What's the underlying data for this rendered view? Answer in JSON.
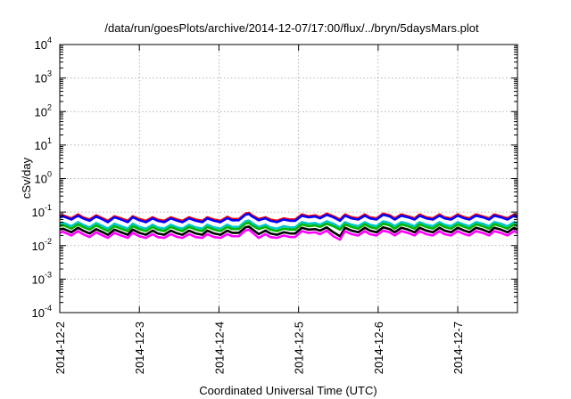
{
  "chart_data": {
    "type": "line",
    "title": "/data/run/goesPlots/archive/2014-12-07/17:00/flux/../bryn/5daysMars.plot",
    "xlabel": "Coordinated Universal Time (UTC)",
    "ylabel": "cSv/day",
    "yscale": "log",
    "ylim": [
      0.0001,
      10000
    ],
    "xlim": [
      "2014-12-02T00:00",
      "2014-12-07T18:00"
    ],
    "grid": true,
    "y_ticks": [
      {
        "base": "10",
        "exp": "-4",
        "value": 0.0001
      },
      {
        "base": "10",
        "exp": "-3",
        "value": 0.001
      },
      {
        "base": "10",
        "exp": "-2",
        "value": 0.01
      },
      {
        "base": "10",
        "exp": "-1",
        "value": 0.1
      },
      {
        "base": "10",
        "exp": "0",
        "value": 1
      },
      {
        "base": "10",
        "exp": "1",
        "value": 10
      },
      {
        "base": "10",
        "exp": "2",
        "value": 100
      },
      {
        "base": "10",
        "exp": "3",
        "value": 1000
      },
      {
        "base": "10",
        "exp": "4",
        "value": 10000
      }
    ],
    "x_ticks": [
      "2014-12-2",
      "2014-12-3",
      "2014-12-4",
      "2014-12-5",
      "2014-12-6",
      "2014-12-7"
    ],
    "x": [
      "2014-12-02T00:00",
      "2014-12-02T01:00",
      "2014-12-02T03:30",
      "2014-12-02T05:30",
      "2014-12-02T07:00",
      "2014-12-02T09:00",
      "2014-12-02T11:00",
      "2014-12-02T13:00",
      "2014-12-02T14:30",
      "2014-12-02T16:30",
      "2014-12-02T18:30",
      "2014-12-02T20:30",
      "2014-12-02T22:00",
      "2014-12-03T00:00",
      "2014-12-03T02:00",
      "2014-12-03T04:00",
      "2014-12-03T05:30",
      "2014-12-03T07:30",
      "2014-12-03T09:30",
      "2014-12-03T11:30",
      "2014-12-03T13:00",
      "2014-12-03T15:00",
      "2014-12-03T17:00",
      "2014-12-03T19:00",
      "2014-12-03T20:30",
      "2014-12-03T22:30",
      "2014-12-04T00:30",
      "2014-12-04T02:30",
      "2014-12-04T04:00",
      "2014-12-04T06:00",
      "2014-12-04T08:00",
      "2014-12-04T09:00",
      "2014-12-04T10:00",
      "2014-12-04T12:00",
      "2014-12-04T14:00",
      "2014-12-04T15:30",
      "2014-12-04T17:30",
      "2014-12-04T19:30",
      "2014-12-04T21:30",
      "2014-12-04T23:00",
      "2014-12-05T01:00",
      "2014-12-05T03:00",
      "2014-12-05T05:00",
      "2014-12-05T06:30",
      "2014-12-05T08:30",
      "2014-12-05T10:30",
      "2014-12-05T12:30",
      "2014-12-05T14:00",
      "2014-12-05T16:00",
      "2014-12-05T18:00",
      "2014-12-05T20:00",
      "2014-12-05T21:30",
      "2014-12-05T23:30",
      "2014-12-06T01:30",
      "2014-12-06T03:30",
      "2014-12-06T05:00",
      "2014-12-06T07:00",
      "2014-12-06T09:00",
      "2014-12-06T11:00",
      "2014-12-06T12:30",
      "2014-12-06T14:30",
      "2014-12-06T16:30",
      "2014-12-06T18:30",
      "2014-12-06T20:00",
      "2014-12-06T22:00",
      "2014-12-07T00:00",
      "2014-12-07T02:00",
      "2014-12-07T03:30",
      "2014-12-07T05:30",
      "2014-12-07T07:30",
      "2014-12-07T09:30",
      "2014-12-07T11:00",
      "2014-12-07T13:00",
      "2014-12-07T15:00",
      "2014-12-07T17:00",
      "2014-12-07T18:00"
    ],
    "series": [
      {
        "color": "#ff0000",
        "values": [
          0.075,
          0.08,
          0.065,
          0.085,
          0.07,
          0.06,
          0.08,
          0.065,
          0.055,
          0.075,
          0.065,
          0.055,
          0.075,
          0.062,
          0.055,
          0.07,
          0.06,
          0.055,
          0.07,
          0.06,
          0.055,
          0.07,
          0.06,
          0.055,
          0.07,
          0.06,
          0.055,
          0.072,
          0.062,
          0.062,
          0.09,
          0.095,
          0.08,
          0.062,
          0.07,
          0.06,
          0.055,
          0.065,
          0.06,
          0.06,
          0.085,
          0.075,
          0.08,
          0.07,
          0.09,
          0.075,
          0.06,
          0.085,
          0.07,
          0.065,
          0.085,
          0.07,
          0.065,
          0.09,
          0.08,
          0.065,
          0.085,
          0.075,
          0.065,
          0.085,
          0.07,
          0.065,
          0.085,
          0.07,
          0.065,
          0.085,
          0.07,
          0.065,
          0.085,
          0.075,
          0.065,
          0.085,
          0.075,
          0.065,
          0.085,
          0.075
        ]
      },
      {
        "color": "#0000ff",
        "values": [
          0.07,
          0.075,
          0.06,
          0.078,
          0.065,
          0.055,
          0.074,
          0.06,
          0.05,
          0.07,
          0.06,
          0.05,
          0.07,
          0.057,
          0.05,
          0.065,
          0.055,
          0.05,
          0.065,
          0.055,
          0.05,
          0.065,
          0.055,
          0.05,
          0.065,
          0.055,
          0.05,
          0.066,
          0.057,
          0.057,
          0.083,
          0.088,
          0.074,
          0.057,
          0.065,
          0.055,
          0.05,
          0.06,
          0.055,
          0.055,
          0.078,
          0.07,
          0.074,
          0.065,
          0.083,
          0.07,
          0.055,
          0.078,
          0.065,
          0.06,
          0.078,
          0.065,
          0.06,
          0.083,
          0.074,
          0.06,
          0.078,
          0.07,
          0.06,
          0.078,
          0.065,
          0.06,
          0.078,
          0.065,
          0.06,
          0.078,
          0.065,
          0.06,
          0.078,
          0.07,
          0.06,
          0.078,
          0.07,
          0.06,
          0.078,
          0.07
        ]
      },
      {
        "color": "#00c8c8",
        "values": [
          0.045,
          0.048,
          0.038,
          0.05,
          0.042,
          0.035,
          0.047,
          0.038,
          0.032,
          0.045,
          0.038,
          0.032,
          0.045,
          0.036,
          0.032,
          0.042,
          0.035,
          0.032,
          0.042,
          0.035,
          0.032,
          0.042,
          0.035,
          0.032,
          0.042,
          0.035,
          0.032,
          0.042,
          0.036,
          0.036,
          0.053,
          0.056,
          0.047,
          0.036,
          0.042,
          0.035,
          0.032,
          0.038,
          0.035,
          0.035,
          0.05,
          0.045,
          0.047,
          0.042,
          0.053,
          0.045,
          0.035,
          0.05,
          0.042,
          0.038,
          0.05,
          0.042,
          0.038,
          0.053,
          0.047,
          0.038,
          0.05,
          0.045,
          0.038,
          0.05,
          0.042,
          0.038,
          0.05,
          0.042,
          0.038,
          0.05,
          0.042,
          0.038,
          0.05,
          0.045,
          0.038,
          0.05,
          0.045,
          0.038,
          0.05,
          0.045
        ]
      },
      {
        "color": "#00b400",
        "values": [
          0.038,
          0.041,
          0.032,
          0.043,
          0.036,
          0.03,
          0.04,
          0.032,
          0.027,
          0.038,
          0.032,
          0.027,
          0.038,
          0.031,
          0.027,
          0.036,
          0.03,
          0.027,
          0.036,
          0.03,
          0.027,
          0.036,
          0.03,
          0.027,
          0.036,
          0.03,
          0.027,
          0.036,
          0.031,
          0.031,
          0.045,
          0.048,
          0.04,
          0.031,
          0.036,
          0.03,
          0.027,
          0.032,
          0.03,
          0.03,
          0.043,
          0.038,
          0.04,
          0.036,
          0.045,
          0.038,
          0.03,
          0.043,
          0.036,
          0.032,
          0.043,
          0.036,
          0.032,
          0.045,
          0.04,
          0.032,
          0.043,
          0.038,
          0.032,
          0.043,
          0.036,
          0.032,
          0.043,
          0.036,
          0.032,
          0.043,
          0.036,
          0.032,
          0.043,
          0.038,
          0.032,
          0.043,
          0.038,
          0.032,
          0.043,
          0.038
        ]
      },
      {
        "color": "#000000",
        "values": [
          0.03,
          0.032,
          0.025,
          0.034,
          0.028,
          0.023,
          0.031,
          0.025,
          0.021,
          0.03,
          0.025,
          0.021,
          0.03,
          0.024,
          0.021,
          0.028,
          0.023,
          0.021,
          0.028,
          0.023,
          0.021,
          0.028,
          0.023,
          0.021,
          0.028,
          0.023,
          0.021,
          0.028,
          0.024,
          0.024,
          0.035,
          0.037,
          0.031,
          0.022,
          0.028,
          0.023,
          0.021,
          0.025,
          0.023,
          0.023,
          0.034,
          0.03,
          0.031,
          0.028,
          0.035,
          0.025,
          0.019,
          0.034,
          0.028,
          0.025,
          0.034,
          0.028,
          0.025,
          0.035,
          0.031,
          0.025,
          0.034,
          0.03,
          0.025,
          0.034,
          0.028,
          0.025,
          0.034,
          0.028,
          0.025,
          0.034,
          0.028,
          0.025,
          0.034,
          0.03,
          0.025,
          0.034,
          0.03,
          0.025,
          0.034,
          0.03
        ]
      },
      {
        "color": "#ff00ff",
        "values": [
          0.024,
          0.026,
          0.02,
          0.027,
          0.022,
          0.018,
          0.025,
          0.02,
          0.017,
          0.024,
          0.02,
          0.017,
          0.024,
          0.019,
          0.017,
          0.022,
          0.018,
          0.017,
          0.022,
          0.018,
          0.017,
          0.022,
          0.018,
          0.017,
          0.022,
          0.018,
          0.017,
          0.022,
          0.019,
          0.019,
          0.028,
          0.03,
          0.025,
          0.017,
          0.022,
          0.018,
          0.017,
          0.02,
          0.018,
          0.018,
          0.027,
          0.024,
          0.025,
          0.022,
          0.028,
          0.019,
          0.015,
          0.027,
          0.022,
          0.02,
          0.027,
          0.022,
          0.02,
          0.028,
          0.025,
          0.02,
          0.027,
          0.024,
          0.02,
          0.027,
          0.022,
          0.02,
          0.027,
          0.022,
          0.02,
          0.027,
          0.022,
          0.02,
          0.027,
          0.024,
          0.02,
          0.027,
          0.024,
          0.02,
          0.027,
          0.024
        ]
      }
    ]
  }
}
